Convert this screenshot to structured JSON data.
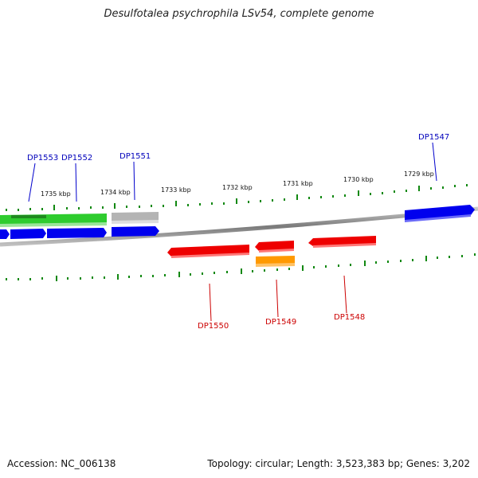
{
  "title": "Desulfotalea psychrophila LSv54, complete genome",
  "footer": {
    "accession": "Accession: NC_006138",
    "summary": "Topology: circular; Length: 3,523,383 bp; Genes: 3,202"
  },
  "colors": {
    "forward_gene": "#0000ee",
    "reverse_gene": "#ee0000",
    "rna_gene": "#22cc22",
    "pseudo_gene": "#b0b0b0",
    "other_gene": "#ff9900",
    "backbone": "#888888",
    "ticks": "#118811"
  },
  "scale_labels": [
    "1735 kbp",
    "1734 kbp",
    "1733 kbp",
    "1732 kbp",
    "1731 kbp",
    "1730 kbp",
    "1729 kbp"
  ],
  "gene_labels": {
    "forward": [
      "DP1553",
      "DP1552",
      "DP1551",
      "DP1547"
    ],
    "reverse": [
      "DP1550",
      "DP1549",
      "DP1548"
    ]
  }
}
